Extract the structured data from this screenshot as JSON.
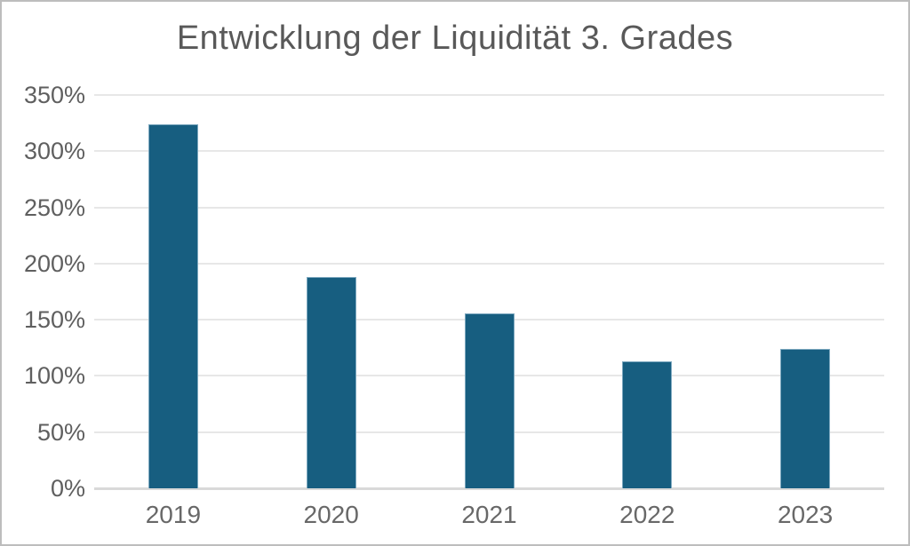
{
  "chart_data": {
    "type": "bar",
    "title": "Entwicklung der Liquidität 3. Grades",
    "categories": [
      "2019",
      "2020",
      "2021",
      "2022",
      "2023"
    ],
    "values": [
      324,
      188,
      156,
      113,
      124
    ],
    "unit": "%",
    "xlabel": "",
    "ylabel": "",
    "ylim": [
      0,
      350
    ],
    "ytick_step": 50,
    "ytick_labels": [
      "0%",
      "50%",
      "100%",
      "150%",
      "200%",
      "250%",
      "300%",
      "350%"
    ],
    "grid": true,
    "legend": "none",
    "colors": {
      "bar_fill": "#175E80",
      "title_text": "#595959",
      "axis_label_text": "#5f5f5f",
      "gridline": "#e7e7e7",
      "axis_baseline": "#d9d9d9",
      "frame_border": "#bdbdbd",
      "background": "#ffffff"
    }
  }
}
